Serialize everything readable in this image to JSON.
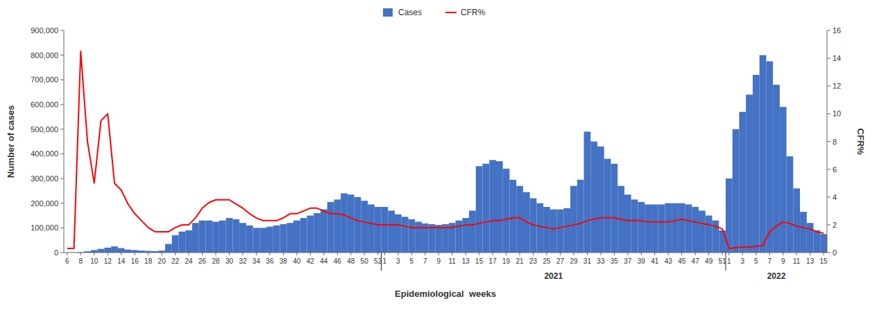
{
  "chart_data": {
    "type": "bar",
    "xlabel": "Epidemiological  weeks",
    "ylabel": "Number of cases",
    "y2label": "CFR%",
    "categories": [
      "6",
      null,
      "8",
      null,
      "10",
      null,
      "12",
      null,
      "14",
      null,
      "16",
      null,
      "18",
      null,
      "20",
      null,
      "22",
      null,
      "24",
      null,
      "26",
      null,
      "28",
      null,
      "30",
      null,
      "32",
      null,
      "34",
      null,
      "36",
      null,
      "38",
      null,
      "40",
      null,
      "42",
      null,
      "44",
      null,
      "46",
      null,
      "48",
      null,
      "50",
      null,
      "52",
      "1",
      null,
      "3",
      null,
      "5",
      null,
      "7",
      null,
      "9",
      null,
      "11",
      null,
      "13",
      null,
      "15",
      null,
      "17",
      null,
      "19",
      null,
      "21",
      null,
      "23",
      null,
      "25",
      null,
      "27",
      null,
      "29",
      null,
      "31",
      null,
      "33",
      null,
      "35",
      null,
      "37",
      null,
      "39",
      null,
      "41",
      null,
      "43",
      null,
      "45",
      null,
      "47",
      null,
      "49",
      null,
      "51",
      "1",
      null,
      "3",
      null,
      "5",
      null,
      "7",
      null,
      "9",
      null,
      "11",
      null,
      "13",
      null,
      "15"
    ],
    "series": [
      {
        "name": "Cases",
        "type": "bar",
        "color": "#4472C4",
        "values": [
          200,
          500,
          2000,
          5000,
          10000,
          15000,
          20000,
          25000,
          18000,
          12000,
          10000,
          8000,
          7000,
          6000,
          8000,
          35000,
          70000,
          85000,
          90000,
          120000,
          130000,
          130000,
          125000,
          130000,
          140000,
          135000,
          120000,
          110000,
          100000,
          100000,
          105000,
          110000,
          115000,
          120000,
          130000,
          140000,
          150000,
          160000,
          175000,
          205000,
          215000,
          240000,
          235000,
          225000,
          210000,
          195000,
          185000,
          185000,
          170000,
          155000,
          145000,
          135000,
          125000,
          118000,
          115000,
          112000,
          115000,
          120000,
          130000,
          140000,
          170000,
          350000,
          360000,
          375000,
          370000,
          340000,
          295000,
          270000,
          245000,
          220000,
          200000,
          185000,
          175000,
          175000,
          180000,
          270000,
          295000,
          490000,
          450000,
          430000,
          380000,
          360000,
          270000,
          235000,
          215000,
          205000,
          195000,
          195000,
          195000,
          200000,
          200000,
          200000,
          195000,
          185000,
          170000,
          150000,
          130000,
          90000,
          300000,
          500000,
          570000,
          640000,
          720000,
          800000,
          775000,
          680000,
          590000,
          390000,
          260000,
          165000,
          120000,
          90000,
          75000
        ]
      },
      {
        "name": "CFR%",
        "type": "line",
        "axis": "y2",
        "color": "#FF0000",
        "values": [
          0.3,
          0.3,
          14.5,
          8.0,
          5.0,
          9.5,
          10.0,
          5.0,
          4.5,
          3.5,
          2.8,
          2.3,
          1.8,
          1.5,
          1.5,
          1.5,
          1.8,
          2.0,
          2.0,
          2.5,
          3.2,
          3.6,
          3.8,
          3.8,
          3.8,
          3.5,
          3.2,
          2.8,
          2.5,
          2.3,
          2.3,
          2.3,
          2.5,
          2.8,
          2.8,
          3.0,
          3.2,
          3.2,
          3.0,
          2.8,
          2.8,
          2.7,
          2.5,
          2.3,
          2.2,
          2.1,
          2.0,
          2.0,
          2.0,
          2.0,
          1.9,
          1.8,
          1.8,
          1.8,
          1.8,
          1.8,
          1.8,
          1.8,
          1.9,
          2.0,
          2.0,
          2.1,
          2.2,
          2.3,
          2.3,
          2.4,
          2.5,
          2.5,
          2.2,
          2.0,
          1.9,
          1.8,
          1.7,
          1.8,
          1.9,
          2.0,
          2.1,
          2.3,
          2.4,
          2.5,
          2.5,
          2.5,
          2.4,
          2.3,
          2.3,
          2.3,
          2.2,
          2.2,
          2.2,
          2.2,
          2.3,
          2.4,
          2.3,
          2.2,
          2.1,
          2.0,
          1.9,
          1.7,
          0.3,
          0.35,
          0.4,
          0.4,
          0.45,
          0.5,
          1.5,
          1.9,
          2.2,
          2.1,
          1.9,
          1.8,
          1.7,
          1.5,
          1.4
        ]
      }
    ],
    "ylim": [
      0,
      900000
    ],
    "yticks": [
      0,
      {
        "value": 100000,
        "label": "100,000"
      },
      {
        "value": 200000,
        "label": "200,000"
      },
      {
        "value": 300000,
        "label": "300,000"
      },
      {
        "value": 400000,
        "label": "400,000"
      },
      {
        "value": 500000,
        "label": "500,000"
      },
      {
        "value": 600000,
        "label": "600,000"
      },
      {
        "value": 700000,
        "label": "700,000"
      },
      {
        "value": 800000,
        "label": "800,000"
      },
      {
        "value": 900000,
        "label": "900,000"
      }
    ],
    "y2lim": [
      0,
      16
    ],
    "y2ticks": [
      0,
      2,
      4,
      6,
      8,
      10,
      12,
      14,
      16
    ],
    "annotations": [
      "2021",
      "2022"
    ],
    "legend": "top",
    "grid": false
  }
}
